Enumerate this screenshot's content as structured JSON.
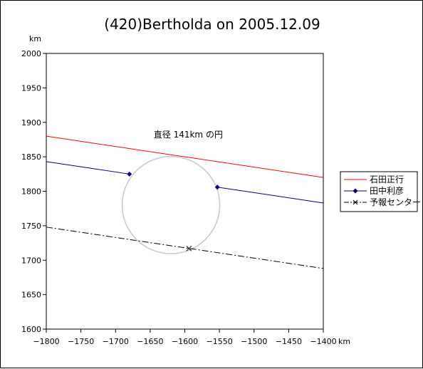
{
  "chart_data": {
    "type": "line",
    "title": "(420)Bertholda on 2005.12.09",
    "xlabel": "km",
    "ylabel": "km",
    "xlim": [
      -1800,
      -1400
    ],
    "ylim": [
      1600,
      2000
    ],
    "x_ticks": [
      -1800,
      -1750,
      -1700,
      -1650,
      -1600,
      -1550,
      -1500,
      -1450,
      -1400
    ],
    "y_ticks": [
      1600,
      1650,
      1700,
      1750,
      1800,
      1850,
      1900,
      1950,
      2000
    ],
    "grid": false,
    "legend_position": "right",
    "series": [
      {
        "name": "石田正行",
        "color": "#ff0000",
        "style": "solid",
        "marker": "none",
        "points": [
          [
            -1800,
            1880
          ],
          [
            -1400,
            1820
          ]
        ]
      },
      {
        "name": "田中利彦",
        "color": "#000080",
        "style": "solid",
        "marker": "diamond",
        "segments": [
          [
            [
              -1800,
              1843
            ],
            [
              -1680,
              1825
            ]
          ],
          [
            [
              -1553,
              1806
            ],
            [
              -1400,
              1783
            ]
          ]
        ],
        "markers": [
          [
            -1680,
            1825
          ],
          [
            -1553,
            1806
          ]
        ]
      },
      {
        "name": "予報センター",
        "color": "#000000",
        "style": "dashdot",
        "marker": "x",
        "points": [
          [
            -1800,
            1748
          ],
          [
            -1400,
            1688
          ]
        ],
        "markers": [
          [
            -1594,
            1717
          ]
        ]
      }
    ],
    "circle": {
      "center": [
        -1620,
        1780
      ],
      "radius": 70.5,
      "color": "#c8c8c8"
    },
    "annotation": {
      "text": "直径 141km の円",
      "x": -1595,
      "y": 1878
    }
  }
}
